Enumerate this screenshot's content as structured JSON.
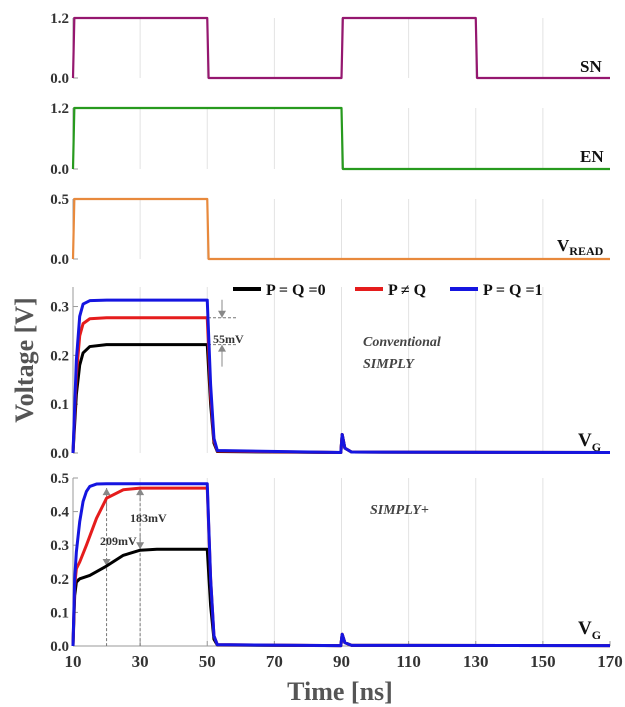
{
  "axes": {
    "ylabel": "Voltage [V]",
    "xlabel": "Time [ns]",
    "xticks": [
      "10",
      "30",
      "50",
      "70",
      "90",
      "110",
      "130",
      "150",
      "170"
    ]
  },
  "legend": {
    "black": "P = Q =0",
    "red": "P ≠ Q",
    "blue": "P = Q =1"
  },
  "panels": {
    "sn": {
      "label": "SN",
      "ticks": [
        "1.2",
        "0.0"
      ]
    },
    "en": {
      "label": "EN",
      "ticks": [
        "1.2",
        "0.0"
      ]
    },
    "vread": {
      "label": "V",
      "sub": "READ",
      "ticks": [
        "0.5",
        "0.0"
      ]
    },
    "vg1": {
      "label": "V",
      "sub": "G",
      "ticks": [
        "0.3",
        "0.2",
        "0.1",
        "0.0"
      ],
      "annotation": [
        "Conventional",
        "SIMPLY"
      ],
      "delta": "55mV"
    },
    "vg2": {
      "label": "V",
      "sub": "G",
      "ticks": [
        "0.5",
        "0.4",
        "0.3",
        "0.2",
        "0.1",
        "0.0"
      ],
      "annotation": "SIMPLY+",
      "delta1": "183mV",
      "delta2": "209mV"
    }
  },
  "colors": {
    "sn": "#95176f",
    "en": "#279a1e",
    "vread": "#e8893c",
    "black": "#000000",
    "red": "#e51c1c",
    "blue": "#1515e0"
  },
  "chart_data": [
    {
      "type": "line",
      "signal": "SN",
      "x": [
        10,
        10.4,
        50,
        50.4,
        90,
        90.4,
        130,
        130.4,
        170
      ],
      "y": [
        0,
        1.2,
        1.2,
        0,
        0,
        1.2,
        1.2,
        0,
        0
      ],
      "ylim": [
        0,
        1.2
      ]
    },
    {
      "type": "line",
      "signal": "EN",
      "x": [
        10,
        10.4,
        90,
        90.4,
        170
      ],
      "y": [
        0,
        1.2,
        1.2,
        0,
        0
      ],
      "ylim": [
        0,
        1.2
      ]
    },
    {
      "type": "line",
      "signal": "V_READ",
      "x": [
        10,
        10.4,
        50,
        50.4,
        170
      ],
      "y": [
        0,
        0.5,
        0.5,
        0,
        0
      ],
      "ylim": [
        0,
        0.5
      ]
    },
    {
      "type": "line",
      "panel": "Conventional SIMPLY",
      "ylim": [
        0,
        0.34
      ],
      "series": [
        {
          "name": "P = Q =0",
          "x": [
            10,
            11,
            12,
            13,
            15,
            20,
            50,
            51,
            52,
            53,
            89.8,
            90.2,
            91,
            93,
            170
          ],
          "y": [
            0,
            0.12,
            0.18,
            0.205,
            0.218,
            0.222,
            0.222,
            0.1,
            0.02,
            0.003,
            0.001,
            0.038,
            0.01,
            0.002,
            0.001
          ]
        },
        {
          "name": "P ≠ Q",
          "x": [
            10,
            11,
            12,
            13,
            15,
            20,
            50,
            51,
            52,
            53,
            89.8,
            90.2,
            91,
            93,
            170
          ],
          "y": [
            0,
            0.16,
            0.24,
            0.265,
            0.275,
            0.277,
            0.277,
            0.12,
            0.025,
            0.004,
            0.001,
            0.038,
            0.01,
            0.002,
            0.001
          ]
        },
        {
          "name": "P = Q =1",
          "x": [
            10,
            11,
            12,
            13,
            15,
            20,
            50,
            51,
            52,
            53,
            89.8,
            90.2,
            91,
            93,
            170
          ],
          "y": [
            0,
            0.19,
            0.28,
            0.305,
            0.312,
            0.313,
            0.313,
            0.14,
            0.03,
            0.005,
            0.001,
            0.038,
            0.01,
            0.002,
            0.001
          ]
        }
      ]
    },
    {
      "type": "line",
      "panel": "SIMPLY+",
      "ylim": [
        0,
        0.5
      ],
      "series": [
        {
          "name": "P = Q =0",
          "x": [
            10,
            10.5,
            11,
            12,
            15,
            20,
            25,
            30,
            35,
            40,
            50,
            51,
            52,
            53,
            89.8,
            90.2,
            91,
            93,
            170
          ],
          "y": [
            0,
            0.15,
            0.19,
            0.2,
            0.21,
            0.238,
            0.27,
            0.285,
            0.288,
            0.288,
            0.288,
            0.12,
            0.02,
            0.003,
            0.001,
            0.035,
            0.01,
            0.002,
            0.001
          ]
        },
        {
          "name": "P ≠ Q",
          "x": [
            10,
            10.5,
            11,
            12,
            14,
            17,
            20,
            25,
            30,
            40,
            50,
            51,
            52,
            53,
            89.8,
            90.2,
            91,
            93,
            170
          ],
          "y": [
            0,
            0.18,
            0.23,
            0.25,
            0.3,
            0.38,
            0.44,
            0.465,
            0.47,
            0.47,
            0.47,
            0.2,
            0.03,
            0.004,
            0.001,
            0.035,
            0.01,
            0.002,
            0.001
          ]
        },
        {
          "name": "P = Q =1",
          "x": [
            10,
            10.5,
            11,
            12,
            13,
            14,
            15,
            17,
            20,
            50,
            51,
            52,
            53,
            89.8,
            90.2,
            91,
            93,
            170
          ],
          "y": [
            0,
            0.2,
            0.28,
            0.37,
            0.43,
            0.46,
            0.475,
            0.482,
            0.483,
            0.483,
            0.2,
            0.03,
            0.004,
            0.001,
            0.035,
            0.01,
            0.002,
            0.001
          ]
        }
      ]
    }
  ]
}
